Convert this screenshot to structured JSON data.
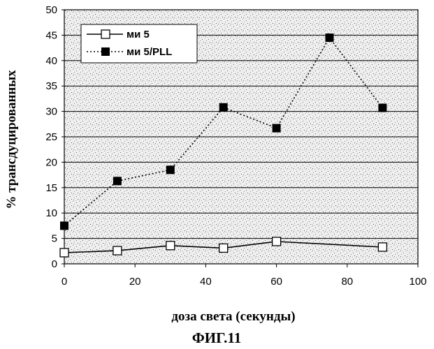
{
  "chart_data": {
    "type": "line",
    "title": "",
    "xlabel": "доза света (секунды)",
    "ylabel": "% трансдуцированных",
    "figure_label": "ФИГ.11",
    "xlim": [
      0,
      100
    ],
    "ylim": [
      0,
      50
    ],
    "xticks": [
      0,
      20,
      40,
      60,
      80,
      100
    ],
    "yticks": [
      0,
      5,
      10,
      15,
      20,
      25,
      30,
      35,
      40,
      45,
      50
    ],
    "grid": "horizontal",
    "legend_position": "top-left",
    "series": [
      {
        "name": "ми 5",
        "marker": "open-square",
        "line": "solid",
        "x": [
          0,
          15,
          30,
          45,
          60,
          90
        ],
        "y": [
          2.2,
          2.6,
          3.6,
          3.1,
          4.4,
          3.3
        ]
      },
      {
        "name": "ми 5/PLL",
        "marker": "filled-square",
        "line": "dotted",
        "x": [
          0,
          15,
          30,
          45,
          60,
          75,
          90
        ],
        "y": [
          7.5,
          16.3,
          18.5,
          30.8,
          26.7,
          44.5,
          30.7
        ]
      }
    ]
  }
}
